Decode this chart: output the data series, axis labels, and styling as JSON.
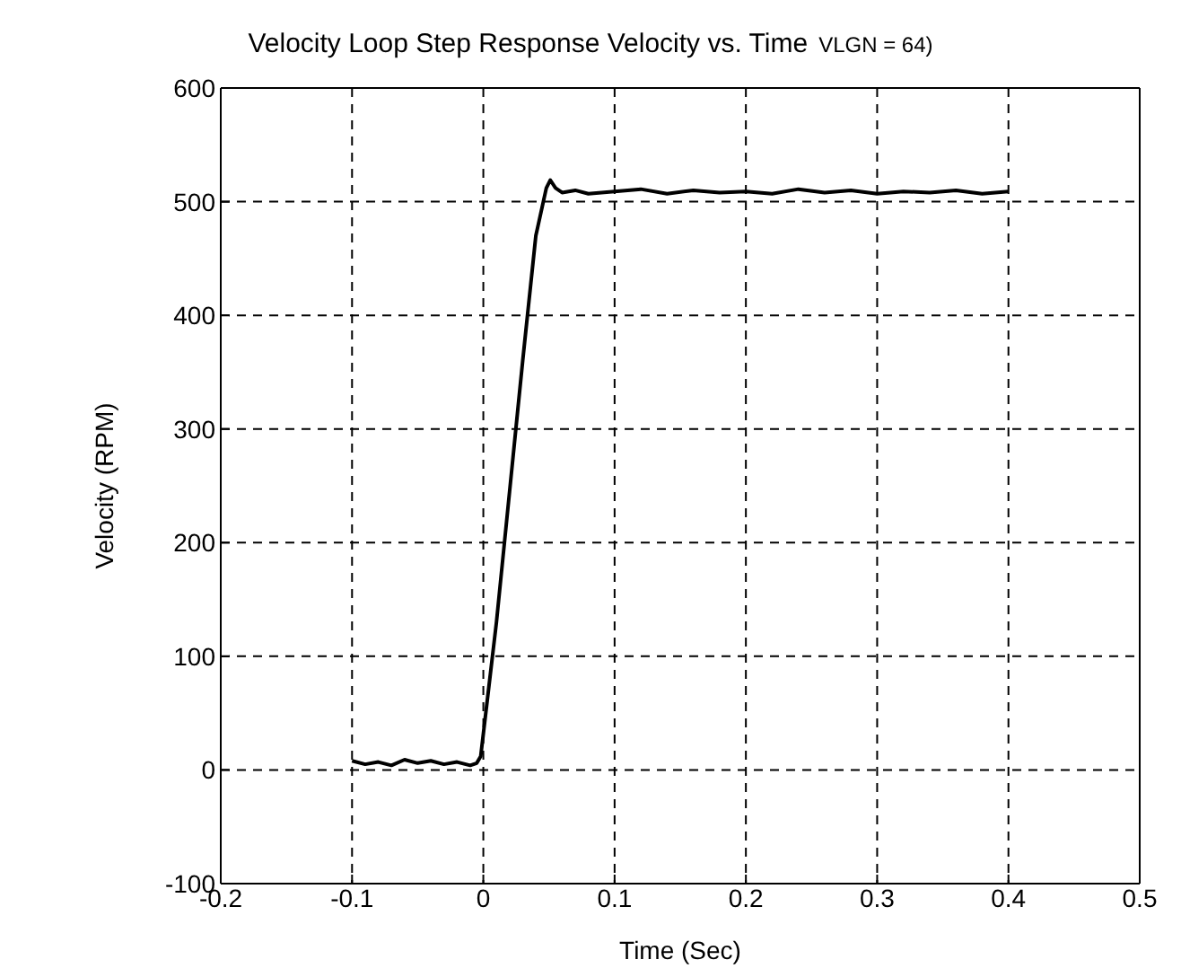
{
  "chart_data": {
    "type": "line",
    "title": "Velocity Loop Step Response Velocity vs. Time",
    "annotations": [
      "VLGN = 64)"
    ],
    "xlabel": "Time (Sec)",
    "ylabel": "Velocity (RPM)",
    "xlim": [
      -0.2,
      0.5
    ],
    "xticks": [
      -0.2,
      -0.1,
      0,
      0.1,
      0.2,
      0.3,
      0.4,
      0.5
    ],
    "ylim": [
      -100,
      600
    ],
    "yticks": [
      -100,
      0,
      100,
      200,
      300,
      400,
      500,
      600
    ],
    "grid": true,
    "line_style": "solid",
    "marker": "none",
    "series": [
      {
        "color": "#000000",
        "x": [
          -0.1,
          -0.09,
          -0.08,
          -0.07,
          -0.06,
          -0.05,
          -0.04,
          -0.03,
          -0.02,
          -0.01,
          -0.005,
          -0.002,
          0.01,
          0.02,
          0.03,
          0.04,
          0.048,
          0.051,
          0.055,
          0.06,
          0.07,
          0.08,
          0.1,
          0.12,
          0.14,
          0.16,
          0.18,
          0.2,
          0.22,
          0.24,
          0.26,
          0.28,
          0.3,
          0.32,
          0.34,
          0.36,
          0.38,
          0.4
        ],
        "values": [
          8,
          5,
          7,
          4,
          9,
          6,
          8,
          5,
          7,
          4,
          6,
          12,
          130,
          245,
          360,
          470,
          512,
          519,
          512,
          508,
          510,
          507,
          509,
          511,
          507,
          510,
          508,
          509,
          507,
          511,
          508,
          510,
          507,
          509,
          508,
          510,
          507,
          509
        ]
      }
    ]
  }
}
